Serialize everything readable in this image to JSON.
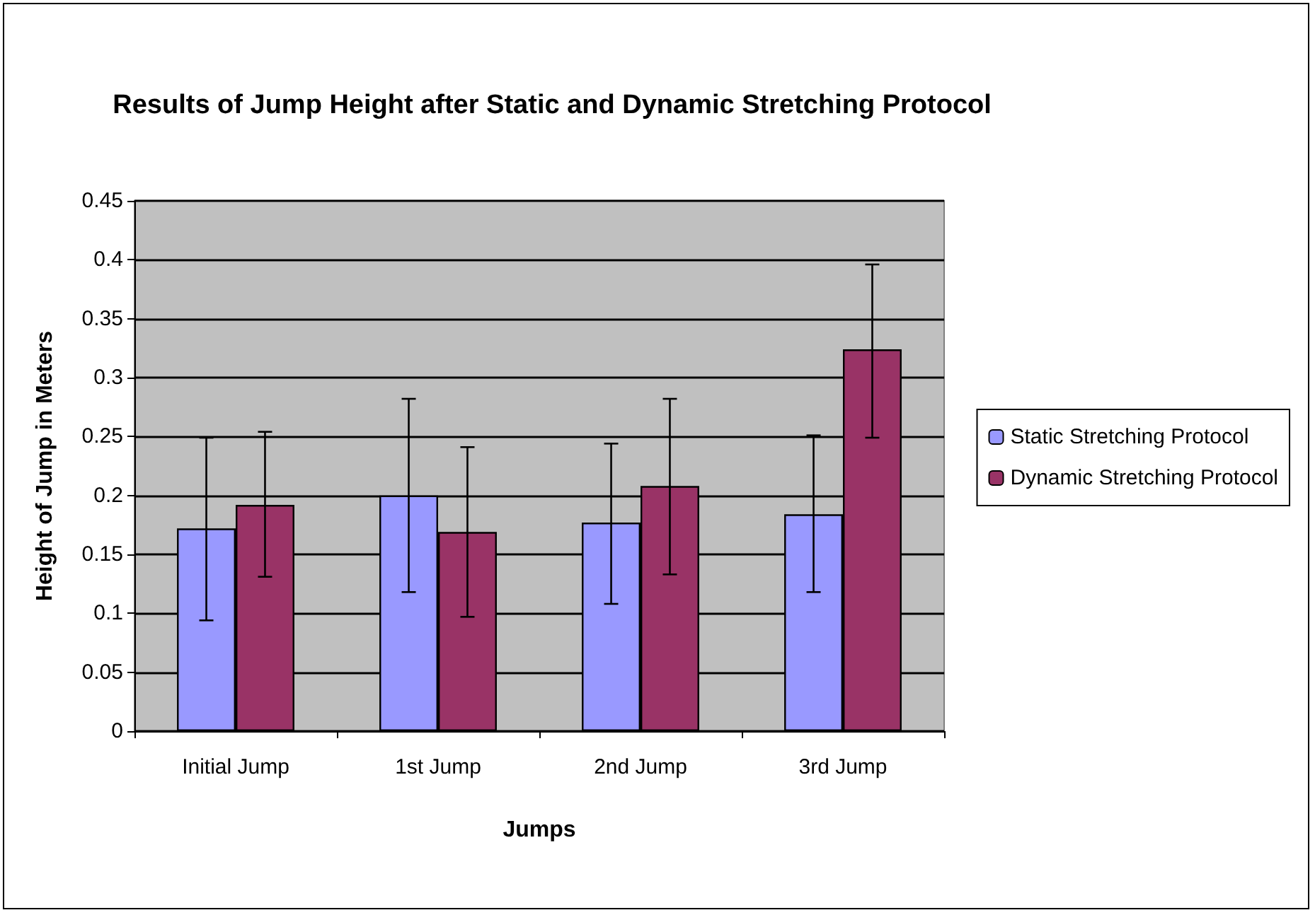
{
  "chart_data": {
    "type": "bar",
    "title": "Results of Jump Height after Static and Dynamic Stretching Protocol",
    "xlabel": "Jumps",
    "ylabel": "Height of Jump in Meters",
    "categories": [
      "Initial Jump",
      "1st Jump",
      "2nd Jump",
      "3rd Jump"
    ],
    "series": [
      {
        "name": "Static Stretching Protocol",
        "color": "#9999ff",
        "values": [
          0.172,
          0.2,
          0.177,
          0.184
        ],
        "errors": [
          [
            0.094,
            0.249
          ],
          [
            0.118,
            0.282
          ],
          [
            0.108,
            0.244
          ],
          [
            0.118,
            0.251
          ]
        ]
      },
      {
        "name": "Dynamic Stretching Protocol",
        "color": "#993366",
        "values": [
          0.192,
          0.169,
          0.208,
          0.324
        ],
        "errors": [
          [
            0.131,
            0.254
          ],
          [
            0.097,
            0.241
          ],
          [
            0.133,
            0.282
          ],
          [
            0.249,
            0.396
          ]
        ]
      }
    ],
    "ylim": [
      0,
      0.45
    ],
    "yticks": [
      0,
      0.05,
      0.1,
      0.15,
      0.2,
      0.25,
      0.3,
      0.35,
      0.4,
      0.45
    ],
    "grid": "y",
    "legend": "right"
  }
}
